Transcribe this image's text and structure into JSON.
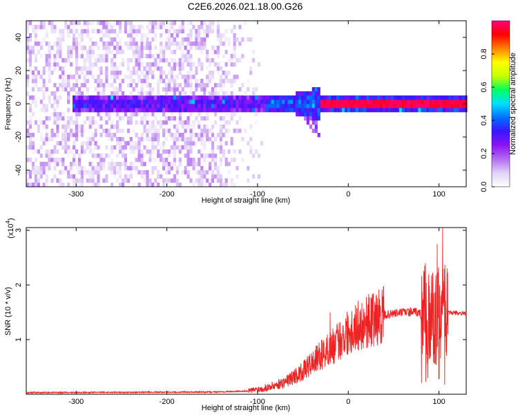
{
  "title": "C2E6.2026.021.18.00.G26",
  "chart_data": [
    {
      "type": "heatmap",
      "xlabel": "Height of straight line (km)",
      "ylabel": "Frequency (Hz)",
      "xlim": [
        -355,
        130
      ],
      "ylim": [
        -50,
        50
      ],
      "xticks": [
        -300,
        -200,
        -100,
        0,
        100
      ],
      "xtick_labels": [
        "-300",
        "-200",
        "-100",
        "0",
        "100"
      ],
      "yticks": [
        -40,
        -20,
        0,
        20,
        40
      ],
      "ytick_labels": [
        "-40",
        "-20",
        "0",
        "20",
        "40"
      ],
      "colorbar": {
        "label": "Normalized spectral amplitude",
        "range": [
          0,
          1
        ],
        "ticks": [
          0.0,
          0.2,
          0.4,
          0.6,
          0.8
        ],
        "tick_labels": [
          "0.0",
          "0.2",
          "0.4",
          "0.6",
          "0.8"
        ],
        "colors": [
          "#ffffff",
          "#e2d2f6",
          "#b36cf0",
          "#8a14f5",
          "#3c14ff",
          "#0070ff",
          "#00e0ff",
          "#00ff60",
          "#c8ff00",
          "#ffff00",
          "#ff8000",
          "#ff0000",
          "#ff0080"
        ]
      },
      "band": {
        "description_free": true,
        "center_freq_hz": 0,
        "dense_from_km": -305,
        "tail_min_freq_hz": -20,
        "tail_x_km": [
          -60,
          -30
        ],
        "strong_line_from_km": -30
      },
      "grid": false
    },
    {
      "type": "line",
      "xlabel": "Height of straight line (km)",
      "ylabel": "SNR (10 * v/v)",
      "y_multiplier_label": "(x10",
      "y_multiplier_exp": "4",
      "xlim": [
        -355,
        130
      ],
      "ylim": [
        0,
        3.05
      ],
      "xticks": [
        -300,
        -200,
        -100,
        0,
        100
      ],
      "xtick_labels": [
        "-300",
        "-200",
        "-100",
        "0",
        "100"
      ],
      "yticks": [
        1,
        2,
        3
      ],
      "ytick_labels": [
        "1",
        "2",
        "3"
      ],
      "color": "#ee2222",
      "envelope": {
        "x": [
          -355,
          -150,
          -110,
          -90,
          -70,
          -50,
          -30,
          -15,
          0,
          20,
          40,
          60,
          75,
          85,
          95,
          100,
          105,
          110,
          130
        ],
        "y": [
          0.03,
          0.04,
          0.06,
          0.12,
          0.22,
          0.42,
          0.72,
          0.9,
          1.15,
          1.33,
          1.45,
          1.5,
          1.5,
          1.45,
          1.35,
          1.45,
          1.5,
          1.5,
          1.47
        ]
      },
      "peaks": {
        "x": [
          -20,
          85,
          98,
          104
        ],
        "y": [
          1.5,
          2.4,
          2.75,
          3.05
        ]
      },
      "grid": false
    }
  ]
}
